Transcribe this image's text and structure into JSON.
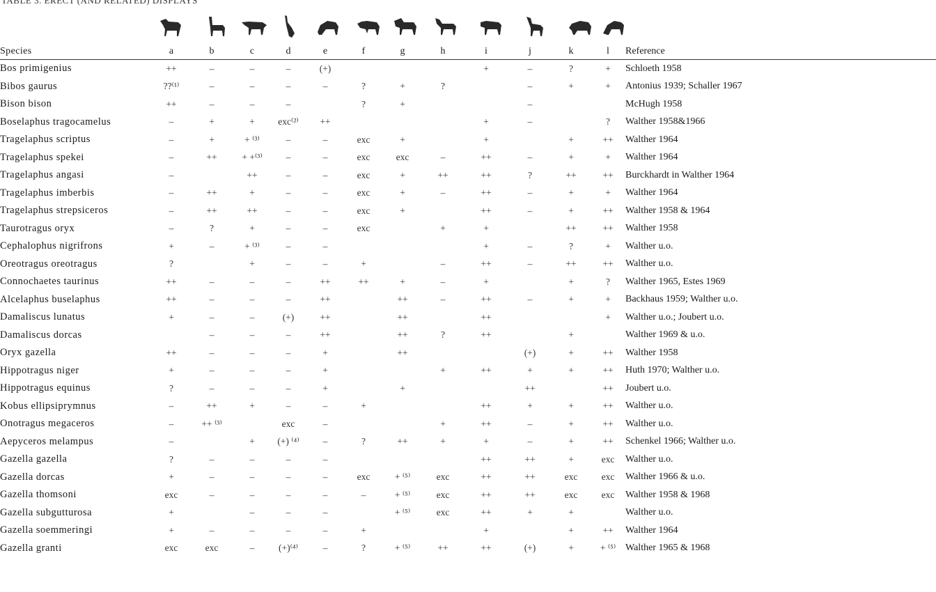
{
  "caption": "TABLE 3. ERECT (AND RELATED) DISPLAYS",
  "columns": [
    "a",
    "b",
    "c",
    "d",
    "e",
    "f",
    "g",
    "h",
    "i",
    "j",
    "k",
    "l"
  ],
  "header": {
    "species": "Species",
    "reference": "Reference"
  },
  "icons": [
    "animal-posture-a-icon",
    "animal-posture-b-icon",
    "animal-posture-c-icon",
    "animal-posture-d-icon",
    "animal-posture-e-icon",
    "animal-posture-f-icon",
    "animal-posture-g-icon",
    "animal-posture-h-icon",
    "animal-posture-i-icon",
    "animal-posture-j-icon",
    "animal-posture-k-icon",
    "animal-posture-l-icon"
  ],
  "rows": [
    {
      "species": "Bos primigenius",
      "cells": [
        "++",
        "–",
        "–",
        "–",
        "(+)",
        "",
        "",
        "",
        "+",
        "–",
        "?",
        "+"
      ],
      "ref": "Schloeth 1958"
    },
    {
      "species": "Bibos gaurus",
      "cells": [
        "??⁽¹⁾",
        "–",
        "–",
        "–",
        "–",
        "?",
        "+",
        "?",
        "",
        "–",
        "+",
        "+"
      ],
      "ref": "Antonius 1939; Schaller 1967"
    },
    {
      "species": "Bison bison",
      "cells": [
        "++",
        "–",
        "–",
        "–",
        "",
        "?",
        "+",
        "",
        "",
        "–",
        "",
        ""
      ],
      "ref": "McHugh 1958"
    },
    {
      "species": "Boselaphus tragocamelus",
      "cells": [
        "–",
        "+",
        "+",
        "exc⁽²⁾",
        "++",
        "",
        "",
        "",
        "+",
        "–",
        "",
        "?"
      ],
      "ref": "Walther 1958&1966"
    },
    {
      "species": "Tragelaphus scriptus",
      "cells": [
        "–",
        "+",
        "+ ⁽³⁾",
        "–",
        "–",
        "exc",
        "+",
        "",
        "+",
        "",
        "+",
        "++"
      ],
      "ref": "Walther 1964"
    },
    {
      "species": "Tragelaphus spekei",
      "cells": [
        "–",
        "++",
        "+ +⁽³⁾",
        "–",
        "–",
        "exc",
        "exc",
        "–",
        "++",
        "–",
        "+",
        "+"
      ],
      "ref": "Walther 1964"
    },
    {
      "species": "Tragelaphus angasi",
      "cells": [
        "–",
        "",
        "++",
        "–",
        "–",
        "exc",
        "+",
        "++",
        "++",
        "?",
        "++",
        "++"
      ],
      "ref": "Burckhardt in Walther 1964"
    },
    {
      "species": "Tragelaphus imberbis",
      "cells": [
        "–",
        "++",
        "+",
        "–",
        "–",
        "exc",
        "+",
        "–",
        "++",
        "–",
        "+",
        "+"
      ],
      "ref": "Walther 1964"
    },
    {
      "species": "Tragelaphus strepsiceros",
      "cells": [
        "–",
        "++",
        "++",
        "–",
        "–",
        "exc",
        "+",
        "",
        "++",
        "–",
        "+",
        "++"
      ],
      "ref": "Walther 1958 & 1964"
    },
    {
      "species": "Taurotragus oryx",
      "cells": [
        "–",
        "?",
        "+",
        "–",
        "–",
        "exc",
        "",
        "+",
        "+",
        "",
        "++",
        "++"
      ],
      "ref": "Walther 1958"
    },
    {
      "species": "Cephalophus nigrifrons",
      "cells": [
        "+",
        "–",
        "+ ⁽³⁾",
        "–",
        "–",
        "",
        "",
        "",
        "+",
        "–",
        "?",
        "+"
      ],
      "ref": "Walther u.o."
    },
    {
      "species": "Oreotragus oreotragus",
      "cells": [
        "?",
        "",
        "+",
        "–",
        "–",
        "+",
        "",
        "–",
        "++",
        "–",
        "++",
        "++"
      ],
      "ref": "Walther u.o."
    },
    {
      "species": "Connochaetes taurinus",
      "cells": [
        "++",
        "–",
        "–",
        "–",
        "++",
        "++",
        "+",
        "–",
        "+",
        "",
        "+",
        "?"
      ],
      "ref": "Walther 1965, Estes 1969"
    },
    {
      "species": "Alcelaphus buselaphus",
      "cells": [
        "++",
        "–",
        "–",
        "–",
        "++",
        "",
        "++",
        "–",
        "++",
        "–",
        "+",
        "+"
      ],
      "ref": "Backhaus 1959; Walther u.o."
    },
    {
      "species": "Damaliscus lunatus",
      "cells": [
        "+",
        "–",
        "–",
        "(+)",
        "++",
        "",
        "++",
        "",
        "++",
        "",
        "",
        "+"
      ],
      "ref": "Walther u.o.; Joubert u.o."
    },
    {
      "species": "Damaliscus dorcas",
      "cells": [
        "",
        "–",
        "–",
        "–",
        "++",
        "",
        "++",
        "?",
        "++",
        "",
        "+",
        ""
      ],
      "ref": "Walther 1969 & u.o."
    },
    {
      "species": "Oryx gazella",
      "cells": [
        "++",
        "–",
        "–",
        "–",
        "+",
        "",
        "++",
        "",
        "",
        "(+)",
        "+",
        "++"
      ],
      "ref": "Walther 1958"
    },
    {
      "species": "Hippotragus niger",
      "cells": [
        "+",
        "–",
        "–",
        "–",
        "+",
        "",
        "",
        "+",
        "++",
        "+",
        "+",
        "++"
      ],
      "ref": "Huth 1970; Walther u.o."
    },
    {
      "species": "Hippotragus equinus",
      "cells": [
        "?",
        "–",
        "–",
        "–",
        "+",
        "",
        "+",
        "",
        "",
        "++",
        "",
        "++"
      ],
      "ref": "Joubert u.o."
    },
    {
      "species": "Kobus ellipsiprymnus",
      "cells": [
        "–",
        "++",
        "+",
        "–",
        "–",
        "+",
        "",
        "",
        "++",
        "+",
        "+",
        "++"
      ],
      "ref": "Walther u.o."
    },
    {
      "species": "Onotragus megaceros",
      "cells": [
        "–",
        "++ ⁽³⁾",
        "",
        "exc",
        "–",
        "",
        "",
        "+",
        "++",
        "–",
        "+",
        "++"
      ],
      "ref": "Walther u.o."
    },
    {
      "species": "Aepyceros melampus",
      "cells": [
        "–",
        "",
        "+",
        "(+) ⁽⁴⁾",
        "–",
        "?",
        "++",
        "+",
        "+",
        "–",
        "+",
        "++"
      ],
      "ref": "Schenkel 1966; Walther u.o."
    },
    {
      "species": "Gazella gazella",
      "cells": [
        "?",
        "–",
        "–",
        "–",
        "–",
        "",
        "",
        "",
        "++",
        "++",
        "+",
        "exc"
      ],
      "ref": "Walther u.o."
    },
    {
      "species": "Gazella dorcas",
      "cells": [
        "+",
        "–",
        "–",
        "–",
        "–",
        "exc",
        "+ ⁽⁵⁾",
        "exc",
        "++",
        "++",
        "exc",
        "exc"
      ],
      "ref": "Walther 1966 & u.o."
    },
    {
      "species": "Gazella thomsoni",
      "cells": [
        "exc",
        "–",
        "–",
        "–",
        "–",
        "–",
        "+ ⁽⁵⁾",
        "exc",
        "++",
        "++",
        "exc",
        "exc"
      ],
      "ref": "Walther 1958 & 1968"
    },
    {
      "species": "Gazella subgutturosa",
      "cells": [
        "+",
        "",
        "–",
        "–",
        "–",
        "",
        "+ ⁽⁵⁾",
        "exc",
        "++",
        "+",
        "+",
        ""
      ],
      "ref": "Walther u.o."
    },
    {
      "species": "Gazella soemmeringi",
      "cells": [
        "+",
        "–",
        "–",
        "–",
        "–",
        "+",
        "",
        "",
        "+",
        "",
        "+",
        "++"
      ],
      "ref": "Walther 1964"
    },
    {
      "species": "Gazella granti",
      "cells": [
        "exc",
        "exc",
        "–",
        "(+)⁽⁴⁾",
        "–",
        "?",
        "+ ⁽⁵⁾",
        "++",
        "++",
        "(+)",
        "+",
        "+ ⁽⁵⁾"
      ],
      "ref": "Walther 1965 & 1968"
    }
  ]
}
